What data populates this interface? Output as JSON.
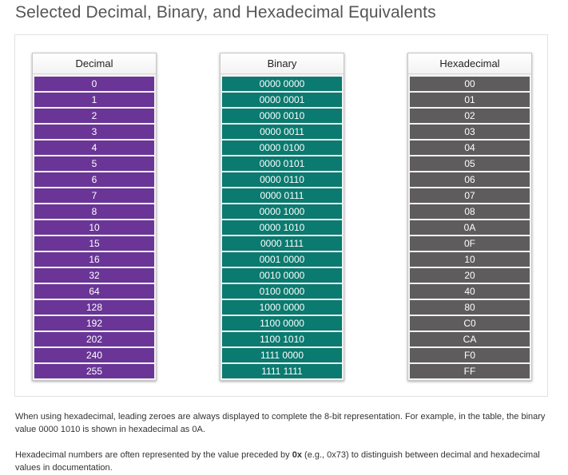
{
  "title": "Selected Decimal, Binary, and Hexadecimal Equivalents",
  "colors": {
    "decimal": "#6a3597",
    "binary": "#0b7a70",
    "hexadecimal": "#5e5c5d"
  },
  "columns": [
    {
      "header": "Decimal",
      "values": [
        "0",
        "1",
        "2",
        "3",
        "4",
        "5",
        "6",
        "7",
        "8",
        "10",
        "15",
        "16",
        "32",
        "64",
        "128",
        "192",
        "202",
        "240",
        "255"
      ]
    },
    {
      "header": "Binary",
      "values": [
        "0000 0000",
        "0000 0001",
        "0000 0010",
        "0000 0011",
        "0000 0100",
        "0000 0101",
        "0000 0110",
        "0000 0111",
        "0000 1000",
        "0000 1010",
        "0000 1111",
        "0001 0000",
        "0010 0000",
        "0100 0000",
        "1000 0000",
        "1100 0000",
        "1100 1010",
        "1111 0000",
        "1111 1111"
      ]
    },
    {
      "header": "Hexadecimal",
      "values": [
        "00",
        "01",
        "02",
        "03",
        "04",
        "05",
        "06",
        "07",
        "08",
        "0A",
        "0F",
        "10",
        "20",
        "40",
        "80",
        "C0",
        "CA",
        "F0",
        "FF"
      ]
    }
  ],
  "paragraph1": "When using hexadecimal, leading zeroes are always displayed to complete the 8-bit representation. For example, in the table, the binary value 0000 1010 is shown in hexadecimal as 0A.",
  "paragraph2": {
    "before": "Hexadecimal numbers are often represented by the value preceded by ",
    "bold": "0x",
    "after": " (e.g., 0x73) to distinguish between decimal and hexadecimal values in documentation."
  }
}
